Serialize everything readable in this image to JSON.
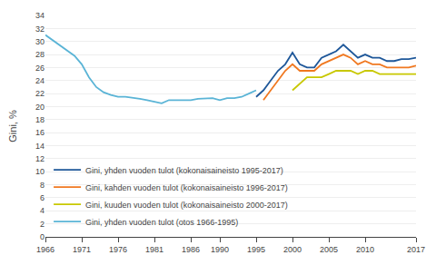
{
  "chart_data": {
    "type": "line",
    "title": "",
    "ylabel": "Gini, %",
    "xlim": [
      1966,
      2017
    ],
    "xticks": [
      1966,
      1971,
      1976,
      1981,
      1986,
      1990,
      1995,
      2000,
      2005,
      2010,
      2017
    ],
    "ylim": [
      0,
      34
    ],
    "yticks": [
      0,
      2,
      4,
      6,
      8,
      10,
      12,
      14,
      16,
      18,
      20,
      22,
      24,
      26,
      28,
      30,
      32,
      34
    ],
    "grid": true,
    "legend": "lower left",
    "series": [
      {
        "name": "Gini, yhden vuoden tulot (kokonaisaineisto 1995-2017)",
        "color": "#1e5799",
        "x": [
          1995,
          1996,
          1997,
          1998,
          1999,
          2000,
          2001,
          2002,
          2003,
          2004,
          2005,
          2006,
          2007,
          2008,
          2009,
          2010,
          2011,
          2012,
          2013,
          2014,
          2015,
          2016,
          2017
        ],
        "values": [
          21.5,
          22.5,
          24.0,
          25.5,
          26.5,
          28.3,
          26.5,
          26.0,
          26.0,
          27.5,
          28.0,
          28.5,
          29.5,
          28.5,
          27.5,
          28.0,
          27.5,
          27.5,
          27.0,
          27.0,
          27.3,
          27.3,
          27.5
        ]
      },
      {
        "name": "Gini, kahden vuoden tulot (kokonaisaineisto 1996-2017)",
        "color": "#f07820",
        "x": [
          1996,
          1997,
          1998,
          1999,
          2000,
          2001,
          2002,
          2003,
          2004,
          2005,
          2006,
          2007,
          2008,
          2009,
          2010,
          2011,
          2012,
          2013,
          2014,
          2015,
          2016,
          2017
        ],
        "values": [
          21.0,
          22.5,
          24.0,
          25.5,
          26.5,
          25.5,
          25.5,
          25.5,
          26.5,
          27.0,
          27.5,
          28.0,
          27.5,
          26.5,
          27.0,
          26.5,
          26.5,
          26.0,
          26.0,
          26.0,
          26.0,
          26.3
        ]
      },
      {
        "name": "Gini, kuuden vuoden tulot (kokonaisaineisto 2000-2017)",
        "color": "#c8c800",
        "x": [
          2000,
          2001,
          2002,
          2003,
          2004,
          2005,
          2006,
          2007,
          2008,
          2009,
          2010,
          2011,
          2012,
          2013,
          2014,
          2015,
          2016,
          2017
        ],
        "values": [
          22.5,
          23.5,
          24.5,
          24.5,
          24.5,
          25.0,
          25.5,
          25.5,
          25.5,
          25.0,
          25.5,
          25.5,
          25.0,
          25.0,
          25.0,
          25.0,
          25.0,
          25.0
        ]
      },
      {
        "name": "Gini, yhden vuoden tulot (otos 1966-1995)",
        "color": "#5ab4d6",
        "x": [
          1966,
          1967,
          1968,
          1969,
          1970,
          1971,
          1972,
          1973,
          1974,
          1975,
          1976,
          1977,
          1978,
          1979,
          1980,
          1981,
          1982,
          1983,
          1984,
          1985,
          1986,
          1987,
          1988,
          1989,
          1990,
          1991,
          1992,
          1993,
          1994,
          1995
        ],
        "values": [
          31.0,
          30.2,
          29.3,
          28.5,
          27.8,
          26.5,
          24.5,
          23.0,
          22.2,
          21.8,
          21.5,
          21.5,
          21.4,
          21.2,
          21.0,
          20.8,
          20.5,
          21.0,
          21.0,
          21.0,
          21.0,
          21.2,
          21.2,
          21.3,
          21.0,
          21.3,
          21.3,
          21.5,
          22.0,
          22.5
        ]
      }
    ]
  }
}
